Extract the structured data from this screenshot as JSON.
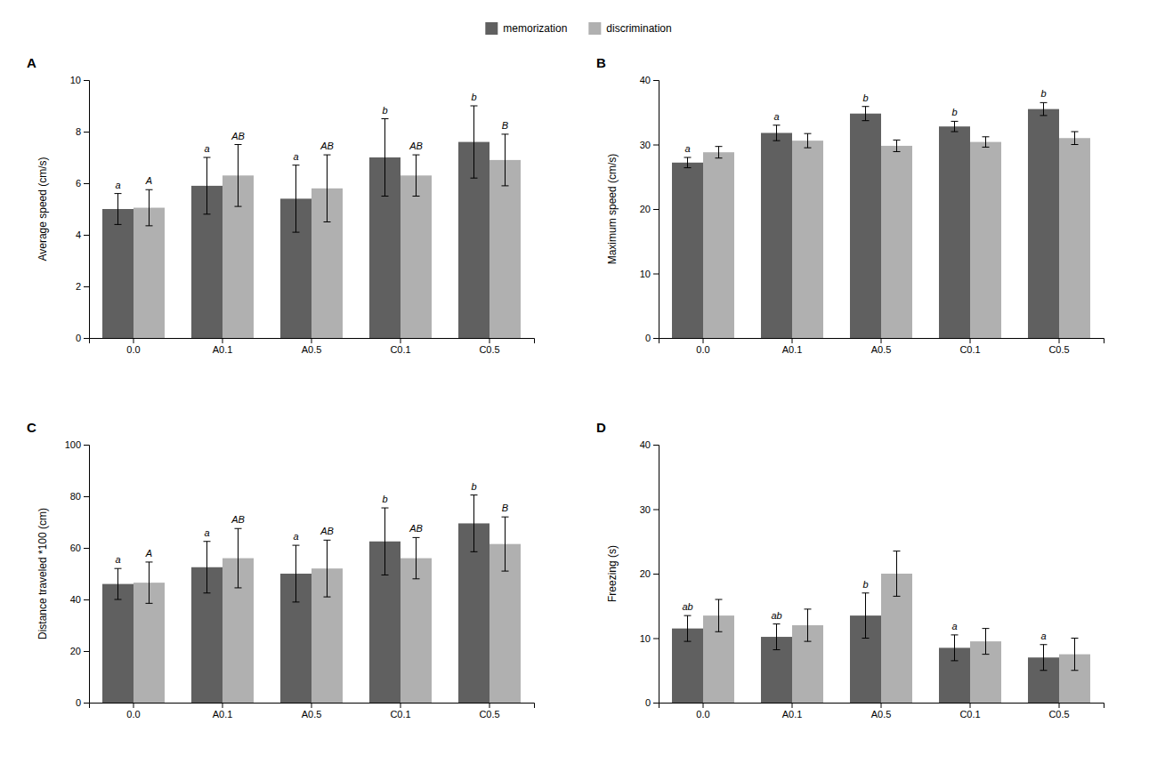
{
  "chart_data": [
    {
      "type": "bar",
      "title": "A",
      "ylabel": "Average speed (cm/s)",
      "categories": [
        "0.0",
        "A0.1",
        "A0.5",
        "C0.1",
        "C0.5"
      ],
      "series": [
        {
          "name": "memorization",
          "color": "#606060",
          "values": [
            5.0,
            5.9,
            5.4,
            7.0,
            7.6
          ],
          "errors": [
            0.6,
            1.1,
            1.3,
            1.5,
            1.4
          ],
          "annotations": [
            "a",
            "a",
            "a",
            "b",
            "b"
          ]
        },
        {
          "name": "discrimination",
          "color": "#b0b0b0",
          "values": [
            5.05,
            6.3,
            5.8,
            6.3,
            6.9
          ],
          "errors": [
            0.7,
            1.2,
            1.3,
            0.8,
            1.0
          ],
          "annotations": [
            "A",
            "AB",
            "AB",
            "AB",
            "B"
          ]
        }
      ],
      "ylim": [
        0,
        10
      ],
      "yticks": [
        0,
        2,
        4,
        6,
        8,
        10
      ],
      "grid": false,
      "legend": "top"
    },
    {
      "type": "bar",
      "title": "B",
      "ylabel": "Maximum speed (cm/s)",
      "categories": [
        "0.0",
        "A0.1",
        "A0.5",
        "C0.1",
        "C0.5"
      ],
      "series": [
        {
          "name": "memorization",
          "color": "#606060",
          "values": [
            27.2,
            31.8,
            34.8,
            32.8,
            35.5
          ],
          "errors": [
            0.8,
            1.2,
            1.1,
            0.8,
            1.0
          ],
          "annotations": [
            "a",
            "a",
            "b",
            "b",
            "b"
          ]
        },
        {
          "name": "discrimination",
          "color": "#b0b0b0",
          "values": [
            28.8,
            30.6,
            29.8,
            30.4,
            31.0
          ],
          "errors": [
            0.9,
            1.1,
            0.9,
            0.8,
            1.0
          ]
        }
      ],
      "ylim": [
        0,
        40
      ],
      "yticks": [
        0,
        10,
        20,
        30,
        40
      ],
      "grid": false
    },
    {
      "type": "bar",
      "title": "C",
      "ylabel": "Distance traveled *100 (cm)",
      "categories": [
        "0.0",
        "A0.1",
        "A0.5",
        "C0.1",
        "C0.5"
      ],
      "series": [
        {
          "name": "memorization",
          "color": "#606060",
          "values": [
            46.0,
            52.5,
            50.0,
            62.5,
            69.5
          ],
          "errors": [
            6.0,
            10.0,
            11.0,
            13.0,
            11.0
          ],
          "annotations": [
            "a",
            "a",
            "a",
            "b",
            "b"
          ]
        },
        {
          "name": "discrimination",
          "color": "#b0b0b0",
          "values": [
            46.5,
            56.0,
            52.0,
            56.0,
            61.5
          ],
          "errors": [
            8.0,
            11.5,
            11.0,
            8.0,
            10.5
          ],
          "annotations": [
            "A",
            "AB",
            "AB",
            "AB",
            "B"
          ]
        }
      ],
      "ylim": [
        0,
        100
      ],
      "yticks": [
        0,
        20,
        40,
        60,
        80,
        100
      ],
      "grid": false
    },
    {
      "type": "bar",
      "title": "D",
      "ylabel": "Freezing (s)",
      "categories": [
        "0.0",
        "A0.1",
        "A0.5",
        "C0.1",
        "C0.5"
      ],
      "series": [
        {
          "name": "memorization",
          "color": "#606060",
          "values": [
            11.5,
            10.2,
            13.5,
            8.5,
            7.0
          ],
          "errors": [
            2.0,
            2.0,
            3.5,
            2.0,
            2.0
          ],
          "annotations": [
            "ab",
            "ab",
            "b",
            "a",
            "a"
          ]
        },
        {
          "name": "discrimination",
          "color": "#b0b0b0",
          "values": [
            13.5,
            12.0,
            20.0,
            9.5,
            7.5
          ],
          "errors": [
            2.5,
            2.5,
            3.5,
            2.0,
            2.5
          ]
        }
      ],
      "ylim": [
        0,
        40
      ],
      "yticks": [
        0,
        10,
        20,
        30,
        40
      ],
      "grid": false
    }
  ]
}
